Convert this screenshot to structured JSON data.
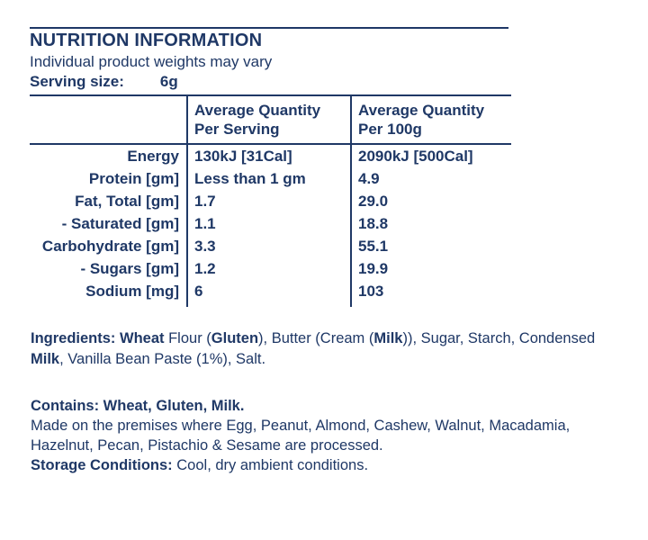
{
  "colors": {
    "navy": "#1f3866",
    "background": "#ffffff"
  },
  "header": {
    "title": "NUTRITION INFORMATION",
    "subtitle": "Individual product weights may vary",
    "serving_size_label": "Serving size:",
    "serving_size_value": "6g"
  },
  "table": {
    "col_headers": [
      {
        "line1": "Average Quantity",
        "line2": "Per Serving"
      },
      {
        "line1": "Average Quantity",
        "line2": "Per 100g"
      }
    ],
    "rows": [
      {
        "label": "Energy",
        "per_serving": "130kJ [31Cal]",
        "per_100g": "2090kJ [500Cal]"
      },
      {
        "label": "Protein [gm]",
        "per_serving": "Less than 1 gm",
        "per_100g": "4.9"
      },
      {
        "label": "Fat, Total [gm]",
        "per_serving": "1.7",
        "per_100g": "29.0"
      },
      {
        "label": "- Saturated [gm]",
        "per_serving": "1.1",
        "per_100g": "18.8"
      },
      {
        "label": "Carbohydrate [gm]",
        "per_serving": "3.3",
        "per_100g": "55.1"
      },
      {
        "label": "- Sugars [gm]",
        "per_serving": "1.2",
        "per_100g": "19.9"
      },
      {
        "label": "Sodium [mg]",
        "per_serving": "6",
        "per_100g": "103"
      }
    ]
  },
  "ingredients": {
    "segments": [
      "Ingredients: Wheat",
      " Flour (",
      "Gluten",
      "), Butter (Cream (",
      "Milk",
      ")), Sugar, Starch, Condensed\n",
      "Milk",
      ", Vanilla Bean Paste (1%), Salt."
    ]
  },
  "contains": {
    "allergen_line": "Contains: Wheat, Gluten, Milk.",
    "facility_line": "Made on the premises where Egg, Peanut, Almond, Cashew, Walnut, Macadamia,\nHazelnut, Pecan, Pistachio & Sesame are processed.",
    "storage_label": "Storage Conditions:",
    "storage_value": " Cool, dry ambient conditions."
  }
}
